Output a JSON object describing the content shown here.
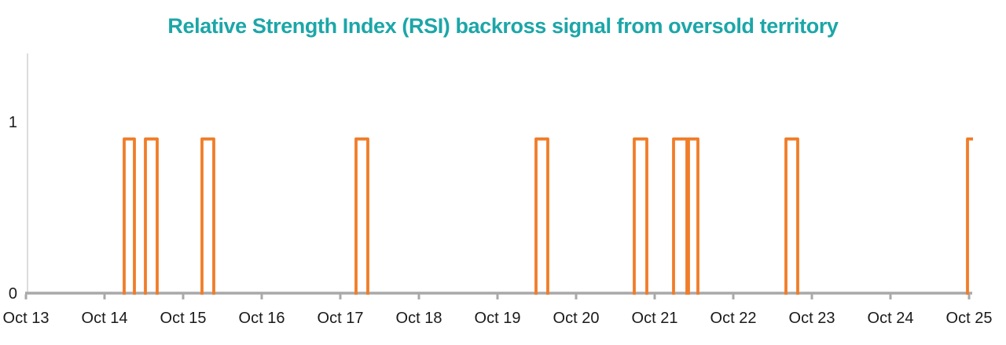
{
  "chart": {
    "title": "Relative Strength Index (RSI) backross signal from oversold territory",
    "colors": {
      "title": "#1CA6A8",
      "series": "#F07D29",
      "x_axis": "#A9A9A9",
      "y_axis_line": "#DCDCDC",
      "tick_label": "#1A1A1A"
    }
  },
  "chart_data": {
    "type": "line",
    "subtype": "step-pulse-signal",
    "title": "Relative Strength Index (RSI) backross signal from oversold territory",
    "xlabel": "",
    "ylabel": "",
    "x_tick_labels": [
      "Oct 13",
      "Oct 14",
      "Oct 15",
      "Oct 16",
      "Oct 17",
      "Oct 18",
      "Oct 19",
      "Oct 20",
      "Oct 21",
      "Oct 22",
      "Oct 23",
      "Oct 24",
      "Oct 25"
    ],
    "y_ticks": [
      {
        "label": "0",
        "value": 0
      },
      {
        "label": "1",
        "value": 1
      }
    ],
    "ylim": [
      0,
      1.4
    ],
    "xlim_days_from_oct13": [
      0,
      12.05
    ],
    "grid": false,
    "legend": false,
    "baseline_value": 0,
    "pulse_value": 0.9,
    "pulses": [
      {
        "start_day": 1.25,
        "end_day": 1.38,
        "open_ended": false
      },
      {
        "start_day": 1.52,
        "end_day": 1.67,
        "open_ended": false
      },
      {
        "start_day": 2.24,
        "end_day": 2.39,
        "open_ended": false
      },
      {
        "start_day": 4.2,
        "end_day": 4.35,
        "open_ended": false
      },
      {
        "start_day": 6.49,
        "end_day": 6.64,
        "open_ended": false
      },
      {
        "start_day": 7.74,
        "end_day": 7.9,
        "open_ended": false
      },
      {
        "start_day": 8.24,
        "end_day": 8.41,
        "open_ended": false
      },
      {
        "start_day": 8.43,
        "end_day": 8.55,
        "open_ended": false
      },
      {
        "start_day": 9.67,
        "end_day": 9.82,
        "open_ended": false
      },
      {
        "start_day": 11.98,
        "end_day": 12.05,
        "open_ended": true
      }
    ]
  }
}
